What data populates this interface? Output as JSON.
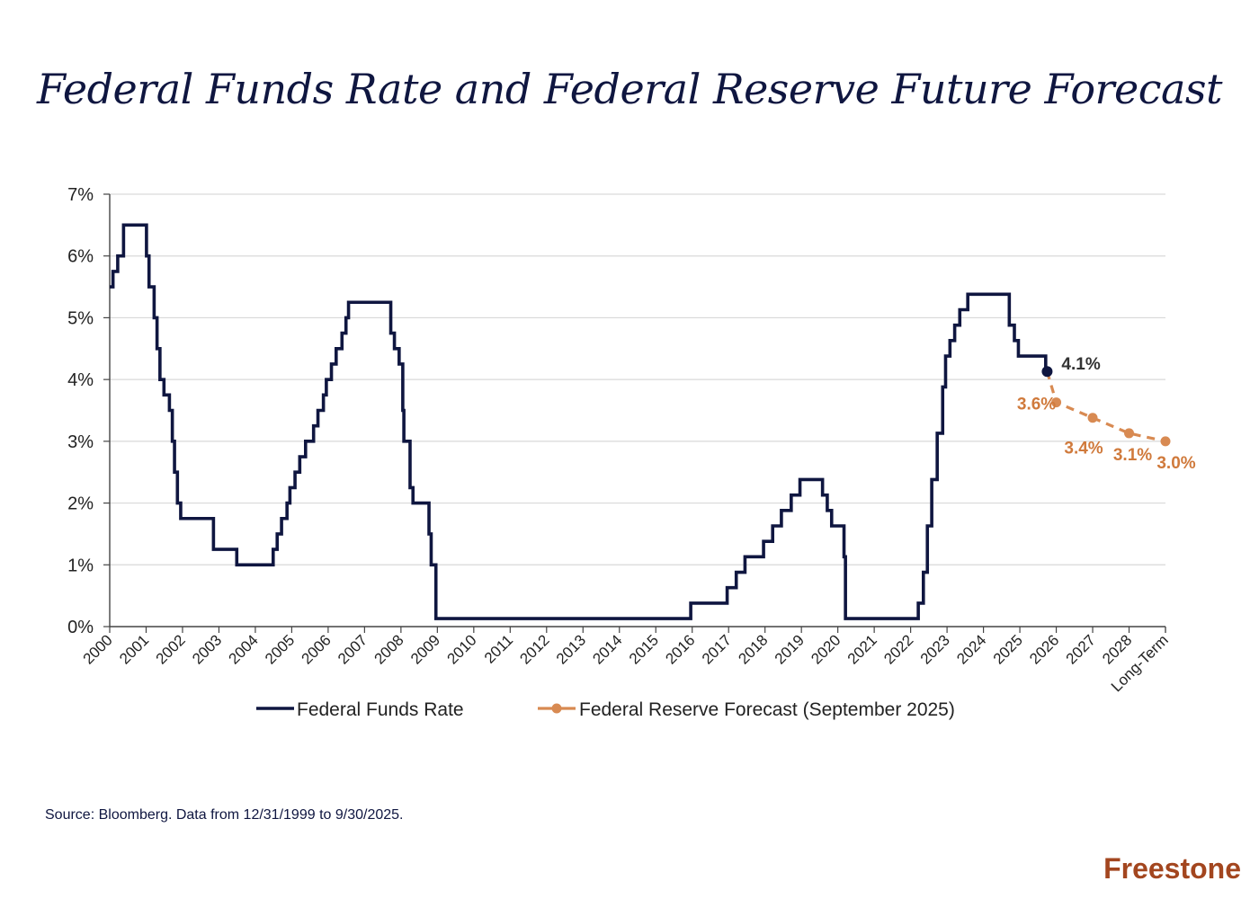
{
  "title": "Federal Funds Rate and Federal Reserve Future Forecast",
  "source": "Source: Bloomberg. Data from 12/31/1999 to 9/30/2025.",
  "logo": "Freestone",
  "colors": {
    "navy": "#0f1640",
    "orange": "#d88a52",
    "grid": "#d9d9d9"
  },
  "chart_data": {
    "type": "line",
    "ylim": [
      0,
      7
    ],
    "yticks": [
      0,
      1,
      2,
      3,
      4,
      5,
      6,
      7
    ],
    "ytick_suffix": "%",
    "categories": [
      "2000",
      "2001",
      "2002",
      "2003",
      "2004",
      "2005",
      "2006",
      "2007",
      "2008",
      "2009",
      "2010",
      "2011",
      "2012",
      "2013",
      "2014",
      "2015",
      "2016",
      "2017",
      "2018",
      "2019",
      "2020",
      "2021",
      "2022",
      "2023",
      "2024",
      "2025",
      "2026",
      "2027",
      "2028",
      "Long-Term"
    ],
    "grid": true,
    "legend": {
      "placement": "bottom-center"
    },
    "series": [
      {
        "name": "Federal Funds Rate",
        "color": "#0f1640",
        "style": "step",
        "points": [
          [
            2000.0,
            5.5
          ],
          [
            2000.09,
            5.75
          ],
          [
            2000.22,
            6.0
          ],
          [
            2000.38,
            6.5
          ],
          [
            2001.01,
            6.0
          ],
          [
            2001.08,
            5.5
          ],
          [
            2001.22,
            5.0
          ],
          [
            2001.3,
            4.5
          ],
          [
            2001.38,
            4.0
          ],
          [
            2001.49,
            3.75
          ],
          [
            2001.64,
            3.5
          ],
          [
            2001.72,
            3.0
          ],
          [
            2001.78,
            2.5
          ],
          [
            2001.86,
            2.0
          ],
          [
            2001.95,
            1.75
          ],
          [
            2002.85,
            1.25
          ],
          [
            2003.49,
            1.0
          ],
          [
            2004.49,
            1.25
          ],
          [
            2004.6,
            1.5
          ],
          [
            2004.72,
            1.75
          ],
          [
            2004.87,
            2.0
          ],
          [
            2004.95,
            2.25
          ],
          [
            2005.09,
            2.5
          ],
          [
            2005.22,
            2.75
          ],
          [
            2005.38,
            3.0
          ],
          [
            2005.6,
            3.25
          ],
          [
            2005.72,
            3.5
          ],
          [
            2005.87,
            3.75
          ],
          [
            2005.95,
            4.0
          ],
          [
            2006.09,
            4.25
          ],
          [
            2006.22,
            4.5
          ],
          [
            2006.38,
            4.75
          ],
          [
            2006.49,
            5.0
          ],
          [
            2006.56,
            5.25
          ],
          [
            2007.72,
            4.75
          ],
          [
            2007.82,
            4.5
          ],
          [
            2007.95,
            4.25
          ],
          [
            2008.05,
            3.5
          ],
          [
            2008.08,
            3.0
          ],
          [
            2008.25,
            2.25
          ],
          [
            2008.33,
            2.0
          ],
          [
            2008.77,
            1.5
          ],
          [
            2008.83,
            1.0
          ],
          [
            2008.96,
            0.13
          ],
          [
            2015.96,
            0.38
          ],
          [
            2016.96,
            0.63
          ],
          [
            2017.21,
            0.88
          ],
          [
            2017.45,
            1.13
          ],
          [
            2017.96,
            1.38
          ],
          [
            2018.21,
            1.63
          ],
          [
            2018.45,
            1.88
          ],
          [
            2018.72,
            2.13
          ],
          [
            2018.96,
            2.38
          ],
          [
            2019.58,
            2.13
          ],
          [
            2019.71,
            1.88
          ],
          [
            2019.83,
            1.63
          ],
          [
            2020.17,
            1.13
          ],
          [
            2020.21,
            0.13
          ],
          [
            2022.21,
            0.38
          ],
          [
            2022.35,
            0.88
          ],
          [
            2022.46,
            1.63
          ],
          [
            2022.58,
            2.38
          ],
          [
            2022.73,
            3.13
          ],
          [
            2022.88,
            3.88
          ],
          [
            2022.96,
            4.38
          ],
          [
            2023.08,
            4.63
          ],
          [
            2023.21,
            4.88
          ],
          [
            2023.35,
            5.13
          ],
          [
            2023.57,
            5.38
          ],
          [
            2024.71,
            4.88
          ],
          [
            2024.85,
            4.63
          ],
          [
            2024.96,
            4.38
          ],
          [
            2025.71,
            4.13
          ]
        ],
        "end_point": [
          2025.75,
          4.13
        ],
        "end_label": "4.1%"
      },
      {
        "name": "Federal Reserve Forecast (September 2025)",
        "color": "#d88a52",
        "style": "dashed-markers",
        "points": [
          [
            2025.75,
            4.13
          ],
          [
            2026.0,
            3.63
          ],
          [
            2027.0,
            3.38
          ],
          [
            2028.0,
            3.13
          ],
          [
            2029.0,
            3.0
          ]
        ],
        "labels": [
          "",
          "3.6%",
          "3.4%",
          "3.1%",
          "3.0%"
        ]
      }
    ]
  }
}
